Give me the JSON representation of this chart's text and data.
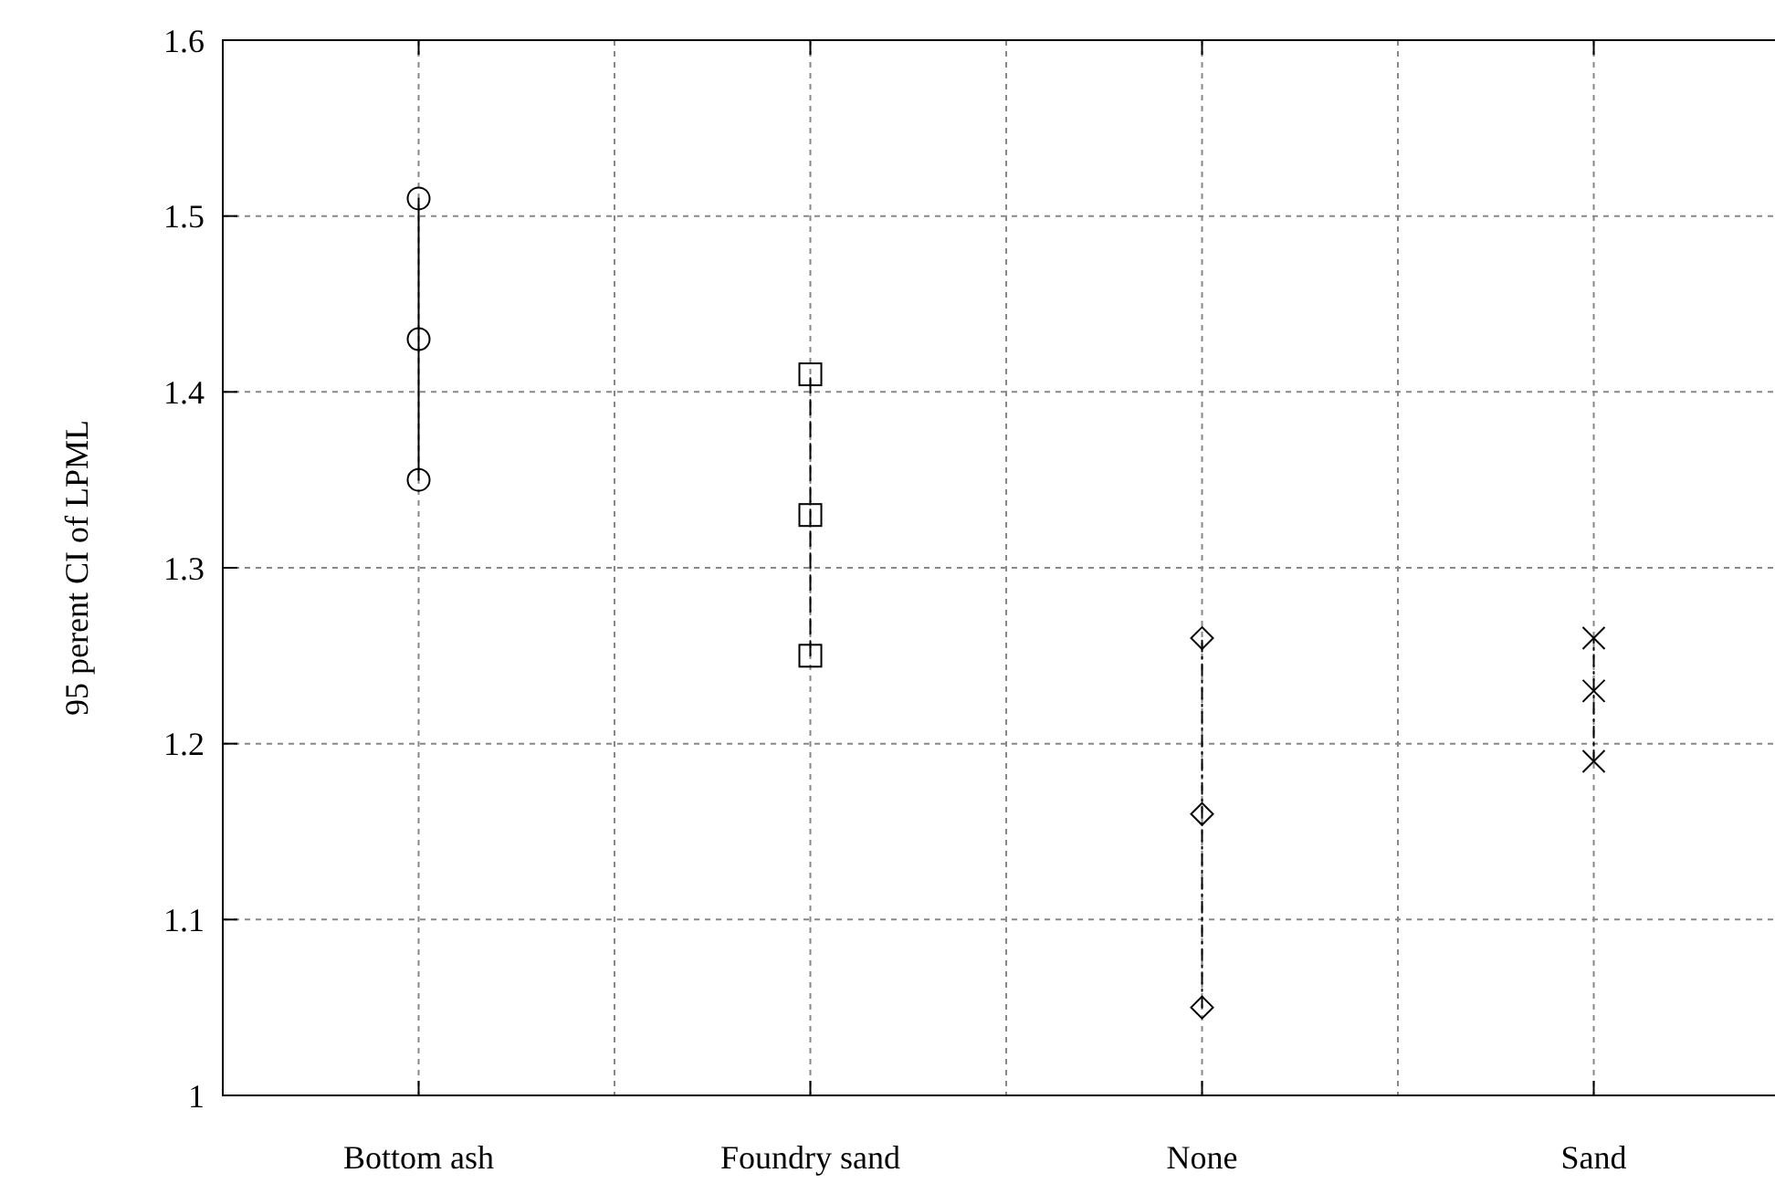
{
  "chart_data": {
    "type": "line",
    "ylabel": "95 perent CI of LPML",
    "categories": [
      "Bottom ash",
      "Foundry sand",
      "None",
      "Sand"
    ],
    "ylim": [
      1,
      1.6
    ],
    "yticks": [
      1,
      1.1,
      1.2,
      1.3,
      1.4,
      1.5,
      1.6
    ],
    "grid": true,
    "series": [
      {
        "color": "#000000",
        "marker": "circle",
        "line_style": "solid",
        "x": [
          "Bottom ash",
          "Bottom ash",
          "Bottom ash"
        ],
        "values": [
          1.35,
          1.43,
          1.51
        ]
      },
      {
        "color": "#000000",
        "marker": "square",
        "line_style": "dashed",
        "x": [
          "Foundry sand",
          "Foundry sand",
          "Foundry sand"
        ],
        "values": [
          1.25,
          1.33,
          1.41
        ]
      },
      {
        "color": "#000000",
        "marker": "diamond",
        "line_style": "dotted",
        "x": [
          "None",
          "None",
          "None"
        ],
        "values": [
          1.05,
          1.16,
          1.26
        ]
      },
      {
        "color": "#000000",
        "marker": "cross",
        "line_style": "dotted",
        "x": [
          "Sand",
          "Sand",
          "Sand"
        ],
        "values": [
          1.19,
          1.23,
          1.26
        ]
      }
    ]
  }
}
